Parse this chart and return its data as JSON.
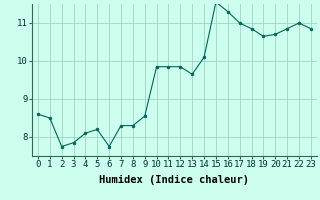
{
  "x": [
    0,
    1,
    2,
    3,
    4,
    5,
    6,
    7,
    8,
    9,
    10,
    11,
    12,
    13,
    14,
    15,
    16,
    17,
    18,
    19,
    20,
    21,
    22,
    23
  ],
  "y": [
    8.6,
    8.5,
    7.75,
    7.85,
    8.1,
    8.2,
    7.75,
    8.3,
    8.3,
    8.55,
    9.85,
    9.85,
    9.85,
    9.65,
    10.1,
    11.55,
    11.3,
    11.0,
    10.85,
    10.65,
    10.7,
    10.85,
    11.0,
    10.85
  ],
  "line_color": "#006655",
  "marker": "o",
  "marker_size": 2.0,
  "bg_color": "#ccffee",
  "grid_color": "#99ccbb",
  "xlabel": "Humidex (Indice chaleur)",
  "ylim": [
    7.5,
    11.5
  ],
  "xlim": [
    -0.5,
    23.5
  ],
  "yticks": [
    8,
    9,
    10,
    11
  ],
  "xticks": [
    0,
    1,
    2,
    3,
    4,
    5,
    6,
    7,
    8,
    9,
    10,
    11,
    12,
    13,
    14,
    15,
    16,
    17,
    18,
    19,
    20,
    21,
    22,
    23
  ],
  "tick_fontsize": 6.5,
  "xlabel_fontsize": 7.5
}
